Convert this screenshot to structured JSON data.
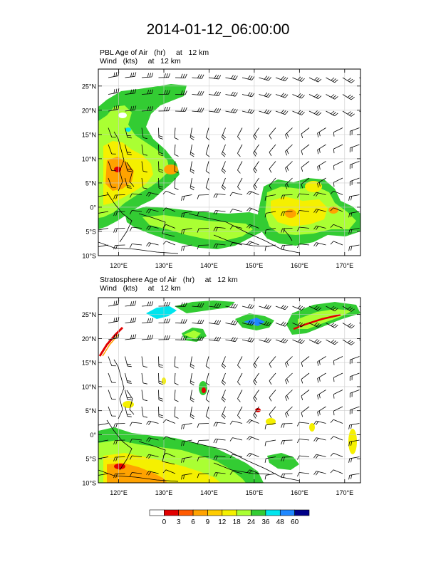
{
  "page": {
    "title": "2014-01-12_06:00:00"
  },
  "panels": [
    {
      "id": "pbl",
      "title_line1": "PBL Age of Air   (hr)     at   12 km",
      "title_line2": "Wind   (kts)     at   12 km",
      "lat_labels": [
        "25°N",
        "20°N",
        "15°N",
        "10°N",
        "5°N",
        "0°",
        "5°S",
        "10°S"
      ],
      "lon_labels": [
        "120°E",
        "130°E",
        "140°E",
        "150°E",
        "160°E",
        "170°E"
      ]
    },
    {
      "id": "strat",
      "title_line1": "Stratosphere Age of Air   (hr)     at   12 km",
      "title_line2": "Wind   (kts)     at   12 km",
      "lat_labels": [
        "25°N",
        "20°N",
        "15°N",
        "10°N",
        "5°N",
        "0°",
        "5°S",
        "10°S"
      ],
      "lon_labels": [
        "120°E",
        "130°E",
        "140°E",
        "150°E",
        "160°E",
        "170°E"
      ]
    }
  ],
  "map_extent": {
    "lon_min": 115.5,
    "lon_max": 173.5,
    "lat_min": -10,
    "lat_max": 28.5
  },
  "colorbar": {
    "labels": [
      "0",
      "3",
      "6",
      "9",
      "12",
      "18",
      "24",
      "36",
      "48",
      "60"
    ],
    "colors": [
      "#ffffff",
      "#e10000",
      "#ff5a00",
      "#ffa200",
      "#ffcc00",
      "#f5f000",
      "#aaff33",
      "#33cc33",
      "#00e5ee",
      "#1e88ff",
      "#000088"
    ]
  },
  "colors": {
    "green": "#33cc33",
    "lightgreen": "#aaff33",
    "yellow": "#f5f000",
    "orange": "#ffa200",
    "red": "#e10000",
    "cyan": "#00e5ee",
    "blue": "#1e88ff"
  }
}
